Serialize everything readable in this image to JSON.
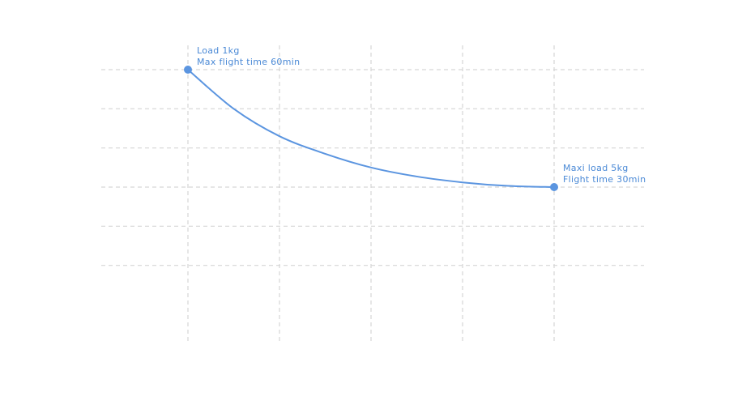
{
  "chart_data": {
    "type": "line",
    "title": "",
    "xlabel": "",
    "ylabel": "",
    "grid": true,
    "x": [
      1,
      2,
      3,
      4,
      5
    ],
    "xlim": [
      0,
      5.5
    ],
    "ylim": [
      0,
      60
    ],
    "series": [
      {
        "color": "#5b95e0",
        "points": [
          {
            "x": 1,
            "y": 60
          },
          {
            "x": 1.5,
            "y": 50
          },
          {
            "x": 2,
            "y": 43
          },
          {
            "x": 2.5,
            "y": 38.5
          },
          {
            "x": 3,
            "y": 35
          },
          {
            "x": 3.5,
            "y": 32.7
          },
          {
            "x": 4,
            "y": 31.2
          },
          {
            "x": 4.5,
            "y": 30.3
          },
          {
            "x": 5,
            "y": 30
          }
        ]
      }
    ],
    "annotations": [
      {
        "x": 1,
        "y": 60,
        "lines": [
          "Load 1kg",
          "Max flight time 60min"
        ]
      },
      {
        "x": 5,
        "y": 30,
        "lines": [
          "Maxi load 5kg",
          "Flight time 30min"
        ]
      }
    ]
  }
}
